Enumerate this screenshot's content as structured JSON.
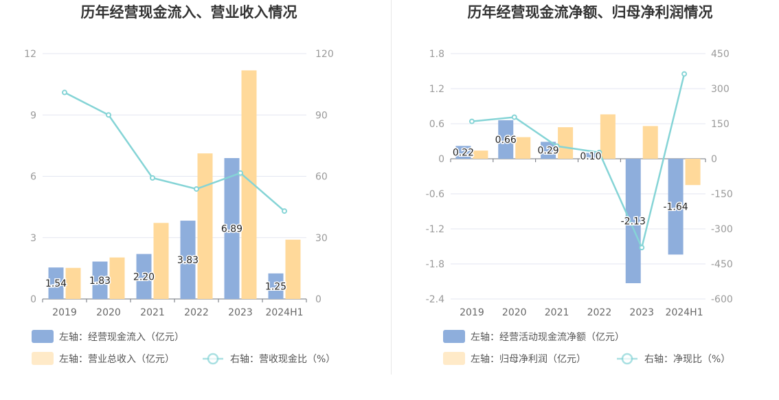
{
  "colors": {
    "blue": "#8eaedc",
    "orange": "#ffd99a",
    "line": "#85d4d6",
    "grid": "#e3e6f0"
  },
  "chart_data": [
    {
      "type": "bar",
      "title": "历年经营现金流入、营业收入情况",
      "categories": [
        "2019",
        "2020",
        "2021",
        "2022",
        "2023",
        "2024H1"
      ],
      "y_left": {
        "ticks": [
          "0",
          "3",
          "6",
          "9",
          "12"
        ],
        "min": 0,
        "max": 12
      },
      "y_right": {
        "ticks": [
          "0",
          "30",
          "60",
          "90",
          "120"
        ],
        "min": 0,
        "max": 120
      },
      "series": [
        {
          "name": "左轴：经营现金流入（亿元）",
          "type": "bar",
          "axis": "left",
          "color": "#8eaedc",
          "values": [
            1.54,
            1.83,
            2.2,
            3.83,
            6.89,
            1.25
          ],
          "labels": [
            "1.54",
            "1.83",
            "2.20",
            "3.83",
            "6.89",
            "1.25"
          ]
        },
        {
          "name": "左轴：营业总收入（亿元）",
          "type": "bar",
          "axis": "left",
          "color": "#ffd99a",
          "values": [
            1.52,
            2.03,
            3.72,
            7.12,
            11.18,
            2.9
          ]
        },
        {
          "name": "右轴：营收现金比（%）",
          "type": "line",
          "axis": "right",
          "color": "#85d4d6",
          "values": [
            101,
            90,
            59.2,
            53.8,
            61.6,
            43
          ]
        }
      ],
      "legend_position": "bottom"
    },
    {
      "type": "bar",
      "title": "历年经营现金流净额、归母净利润情况",
      "categories": [
        "2019",
        "2020",
        "2021",
        "2022",
        "2023",
        "2024H1"
      ],
      "y_left": {
        "ticks": [
          "-2.4",
          "-1.8",
          "-1.2",
          "-0.6",
          "0",
          "0.6",
          "1.2",
          "1.8"
        ],
        "min": -2.4,
        "max": 1.8
      },
      "y_right": {
        "ticks": [
          "-600",
          "-450",
          "-300",
          "-150",
          "0",
          "150",
          "300",
          "450"
        ],
        "min": -600,
        "max": 450
      },
      "series": [
        {
          "name": "左轴：经营活动现金流净额（亿元）",
          "type": "bar",
          "axis": "left",
          "color": "#8eaedc",
          "values": [
            0.22,
            0.66,
            0.29,
            0.1,
            -2.13,
            -1.64
          ],
          "labels": [
            "0.22",
            "0.66",
            "0.29",
            "0.10",
            "-2.13",
            "-1.64"
          ]
        },
        {
          "name": "左轴：归母净利润（亿元）",
          "type": "bar",
          "axis": "left",
          "color": "#ffd99a",
          "values": [
            0.14,
            0.37,
            0.54,
            0.76,
            0.56,
            -0.45
          ]
        },
        {
          "name": "右轴：净现比（%）",
          "type": "line",
          "axis": "right",
          "color": "#85d4d6",
          "values": [
            160,
            178,
            54,
            27,
            -380,
            363
          ]
        }
      ],
      "legend_position": "bottom"
    }
  ]
}
